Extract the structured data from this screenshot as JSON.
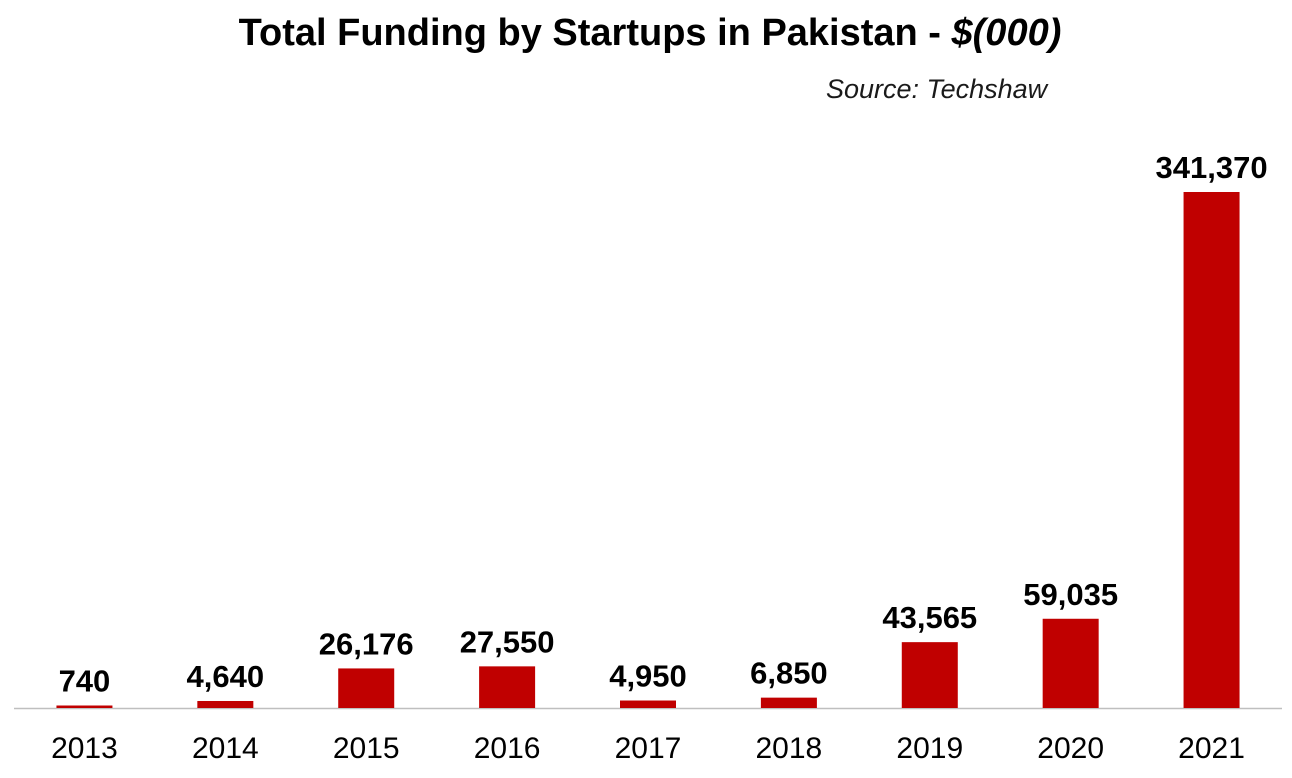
{
  "chart_data": {
    "type": "bar",
    "title": "Total Funding by Startups in Pakistan - ",
    "title_unit": "$(000)",
    "source": "Source: Techshaw",
    "categories": [
      "2013",
      "2014",
      "2015",
      "2016",
      "2017",
      "2018",
      "2019",
      "2020",
      "2021"
    ],
    "values": [
      740,
      4640,
      26176,
      27550,
      4950,
      6850,
      43565,
      59035,
      341370
    ],
    "value_labels": [
      "740",
      "4,640",
      "26,176",
      "27,550",
      "4,950",
      "6,850",
      "43,565",
      "59,035",
      "341,370"
    ],
    "xlabel": "",
    "ylabel": "",
    "ylim": [
      0,
      341370
    ],
    "grid": false,
    "legend": "none",
    "bar_color": "#C00000",
    "axis_color": "#BFBFBF"
  }
}
